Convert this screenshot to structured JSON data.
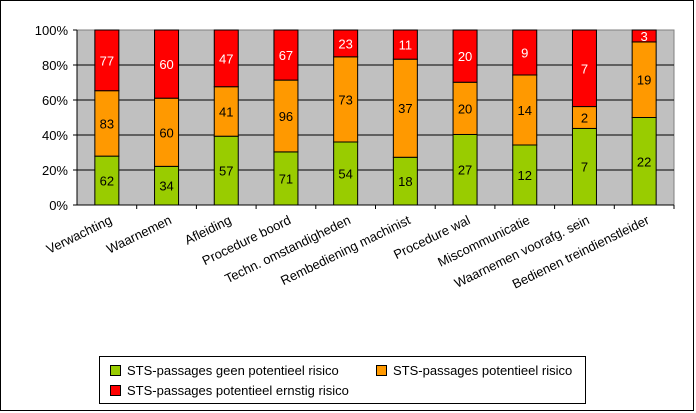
{
  "chart_data": {
    "type": "bar",
    "stacked": "percent",
    "categories": [
      "Verwachting",
      "Waarnemen",
      "Afleiding",
      "Procedure boord",
      "Techn. omstandigheden",
      "Rembediening machinist",
      "Procedure wal",
      "Miscommunicatie",
      "Waarnemen voorafg. sein",
      "Bedienen treindienstleider"
    ],
    "series": [
      {
        "name": "STS-passages geen potentieel risico",
        "color": "#99cc00",
        "values": [
          62,
          34,
          57,
          71,
          54,
          18,
          27,
          12,
          7,
          22
        ]
      },
      {
        "name": "STS-passages potentieel risico",
        "color": "#ff9900",
        "values": [
          83,
          60,
          41,
          96,
          73,
          37,
          20,
          14,
          2,
          19
        ]
      },
      {
        "name": "STS-passages potentieel ernstig risico",
        "color": "#ff0000",
        "values": [
          77,
          60,
          47,
          67,
          23,
          11,
          20,
          9,
          7,
          3
        ]
      }
    ],
    "yticks": [
      "0%",
      "20%",
      "40%",
      "60%",
      "80%",
      "100%"
    ],
    "ylim": [
      0,
      100
    ],
    "grid": true,
    "legend_position": "bottom",
    "plot_background": "#c0c0c0",
    "label_colors": [
      "#000000",
      "#000000",
      "#ffffff"
    ]
  }
}
